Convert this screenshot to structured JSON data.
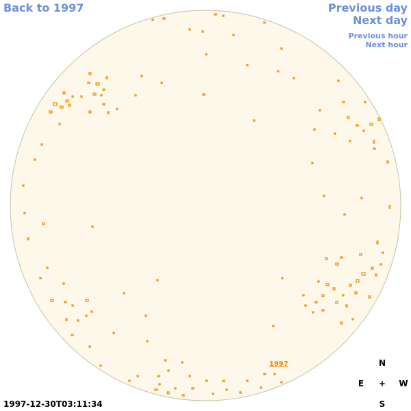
{
  "header": {
    "back_link": "Back to 1997",
    "previous_day": "Previous day",
    "next_day": "Next day",
    "previous_hour": "Previous hour",
    "next_hour": "Next hour"
  },
  "disk_label": "1997",
  "compass": {
    "north": "N",
    "east": "E",
    "center": "+",
    "west": "W",
    "south": "S"
  },
  "timestamp": "1997-12-30T03:11:34"
}
